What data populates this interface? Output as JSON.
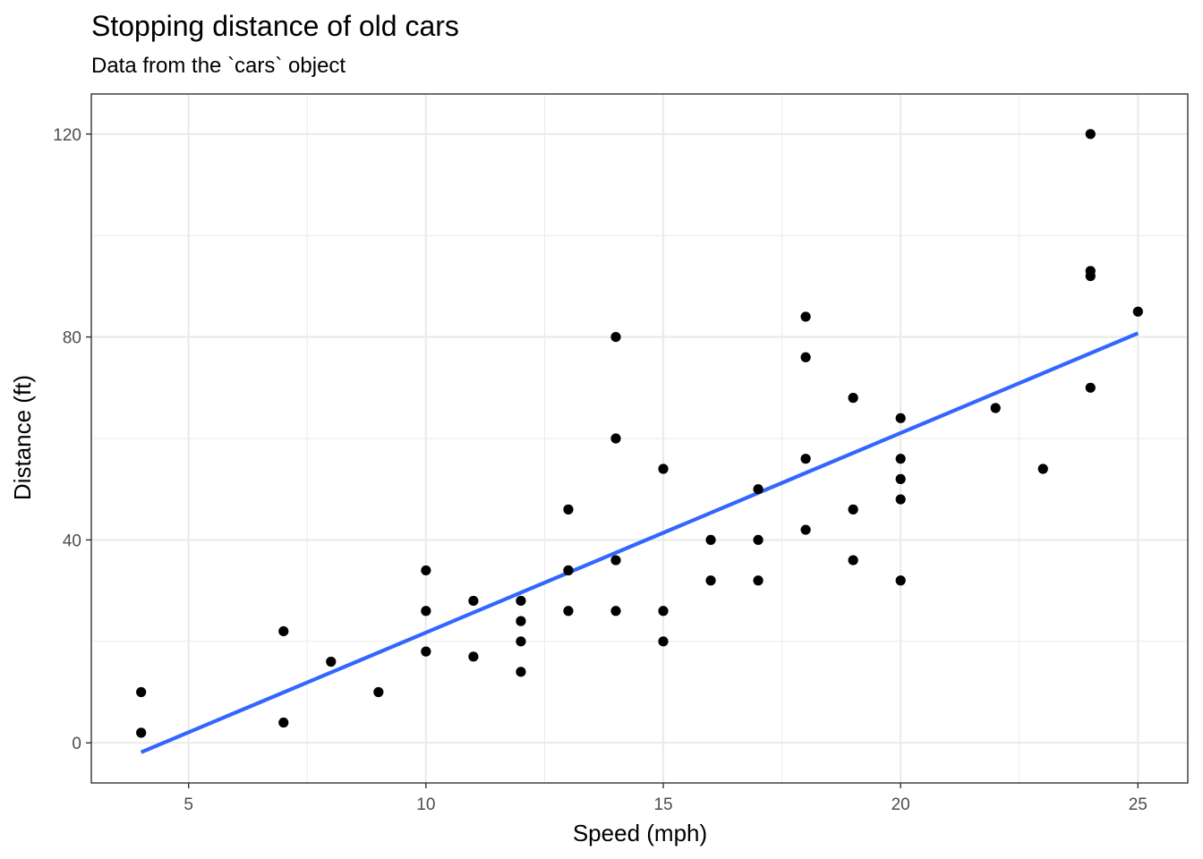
{
  "chart_data": {
    "type": "scatter",
    "title": "Stopping distance of old cars",
    "subtitle": "Data from the `cars` object",
    "xlabel": "Speed (mph)",
    "ylabel": "Distance (ft)",
    "xlim": [
      2.95,
      26.05
    ],
    "ylim": [
      -7.9,
      127.9
    ],
    "x_ticks": [
      5,
      10,
      15,
      20,
      25
    ],
    "y_ticks": [
      0,
      40,
      80,
      120
    ],
    "x_tick_labels": [
      "5",
      "10",
      "15",
      "20",
      "25"
    ],
    "y_tick_labels": [
      "0",
      "40",
      "80",
      "120"
    ],
    "grid": true,
    "points": [
      [
        4,
        2
      ],
      [
        4,
        10
      ],
      [
        7,
        4
      ],
      [
        7,
        22
      ],
      [
        8,
        16
      ],
      [
        9,
        10
      ],
      [
        10,
        18
      ],
      [
        10,
        26
      ],
      [
        10,
        34
      ],
      [
        11,
        17
      ],
      [
        11,
        28
      ],
      [
        12,
        14
      ],
      [
        12,
        20
      ],
      [
        12,
        24
      ],
      [
        12,
        28
      ],
      [
        13,
        26
      ],
      [
        13,
        34
      ],
      [
        13,
        34
      ],
      [
        13,
        46
      ],
      [
        14,
        26
      ],
      [
        14,
        36
      ],
      [
        14,
        60
      ],
      [
        14,
        80
      ],
      [
        15,
        20
      ],
      [
        15,
        26
      ],
      [
        15,
        54
      ],
      [
        16,
        32
      ],
      [
        16,
        40
      ],
      [
        17,
        32
      ],
      [
        17,
        40
      ],
      [
        17,
        50
      ],
      [
        18,
        42
      ],
      [
        18,
        56
      ],
      [
        18,
        76
      ],
      [
        18,
        84
      ],
      [
        19,
        36
      ],
      [
        19,
        46
      ],
      [
        19,
        68
      ],
      [
        20,
        32
      ],
      [
        20,
        48
      ],
      [
        20,
        52
      ],
      [
        20,
        56
      ],
      [
        20,
        64
      ],
      [
        22,
        66
      ],
      [
        23,
        54
      ],
      [
        24,
        70
      ],
      [
        24,
        92
      ],
      [
        24,
        93
      ],
      [
        24,
        120
      ],
      [
        25,
        85
      ]
    ],
    "trend_line": {
      "x": [
        4,
        25
      ],
      "y": [
        -1.85,
        80.73
      ]
    },
    "colors": {
      "points": "#000000",
      "trend_line": "#3366ff",
      "grid": "#ebebeb",
      "panel_border": "#333333"
    }
  }
}
